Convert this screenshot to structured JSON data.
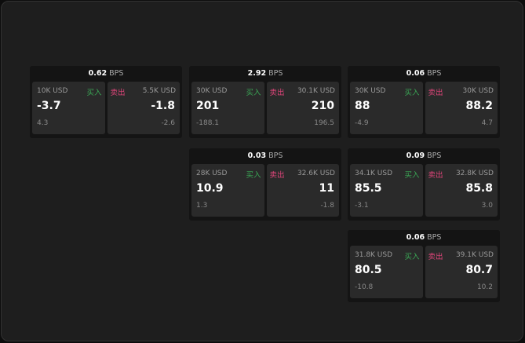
{
  "labels": {
    "buy": "买入",
    "sell": "卖出",
    "unit": "BPS"
  },
  "colors": {
    "buy": "#3aa655",
    "sell": "#e0457a"
  },
  "cards": [
    {
      "spread": "0.62",
      "buy": {
        "size": "10K USD",
        "price": "-3.7",
        "change": "4.3"
      },
      "sell": {
        "size": "5.5K USD",
        "price": "-1.8",
        "change": "-2.6"
      }
    },
    {
      "spread": "2.92",
      "buy": {
        "size": "30K USD",
        "price": "201",
        "change": "-188.1"
      },
      "sell": {
        "size": "30.1K USD",
        "price": "210",
        "change": "196.5"
      }
    },
    {
      "spread": "0.06",
      "buy": {
        "size": "30K USD",
        "price": "88",
        "change": "-4.9"
      },
      "sell": {
        "size": "30K USD",
        "price": "88.2",
        "change": "4.7"
      }
    },
    {
      "spread": "0.03",
      "buy": {
        "size": "28K USD",
        "price": "10.9",
        "change": "1.3"
      },
      "sell": {
        "size": "32.6K USD",
        "price": "11",
        "change": "-1.8"
      }
    },
    {
      "spread": "0.09",
      "buy": {
        "size": "34.1K USD",
        "price": "85.5",
        "change": "-3.1"
      },
      "sell": {
        "size": "32.8K USD",
        "price": "85.8",
        "change": "3.0"
      }
    },
    {
      "spread": "0.06",
      "buy": {
        "size": "31.8K USD",
        "price": "80.5",
        "change": "-10.8"
      },
      "sell": {
        "size": "39.1K USD",
        "price": "80.7",
        "change": "10.2"
      }
    }
  ]
}
